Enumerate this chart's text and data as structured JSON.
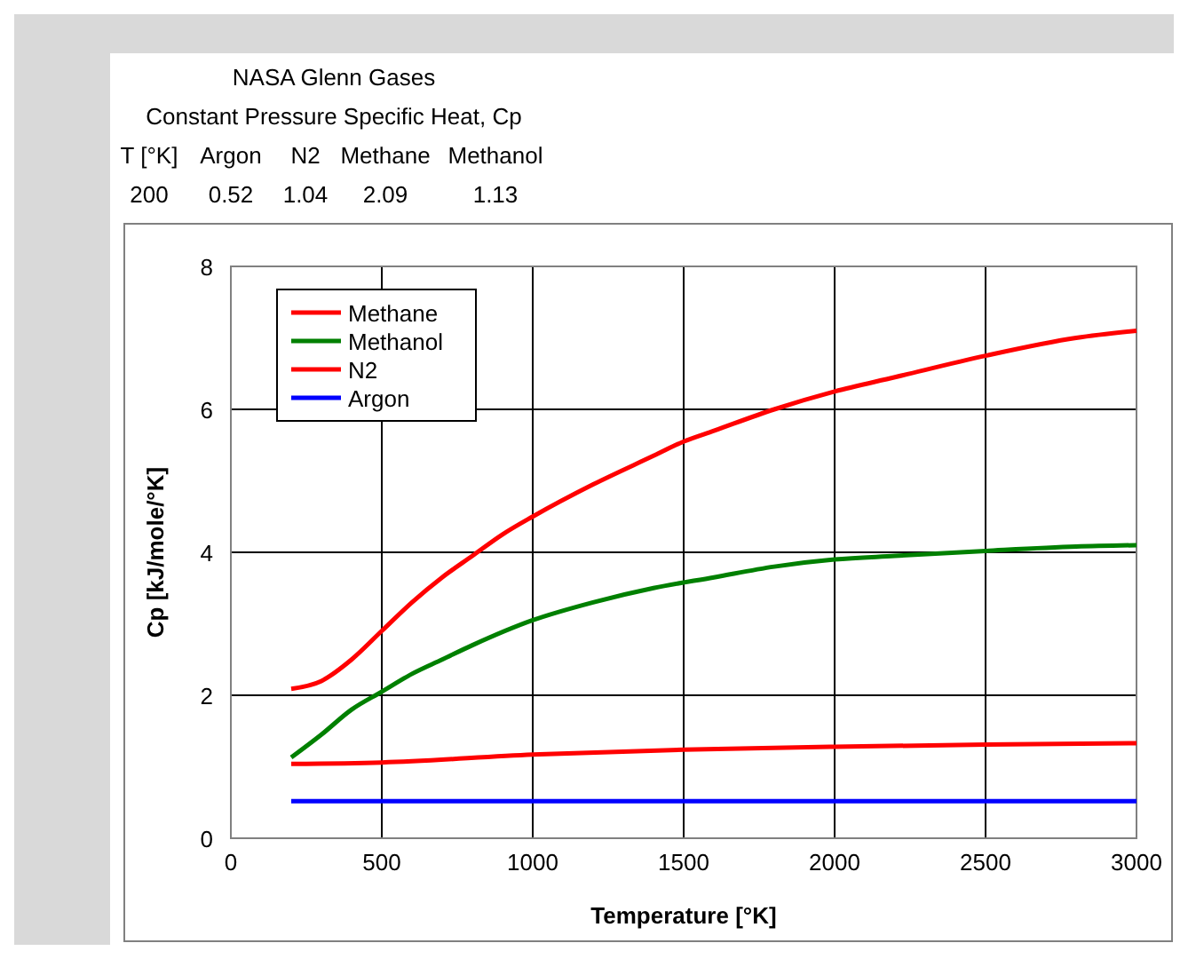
{
  "chart_data": {
    "type": "line",
    "title": "NASA Glenn Gases",
    "subtitle": "Constant Pressure Specific Heat, Cp",
    "annotations": [
      "T [°K]",
      "Argon",
      "N2",
      "Methane",
      "Methanol",
      "200",
      "0.52",
      "1.04",
      "2.09",
      "1.13"
    ],
    "xlabel": "Temperature [°K]",
    "ylabel": "Cp [kJ/mole/°K]",
    "xlim": [
      0,
      3000
    ],
    "xticks": [
      0,
      500,
      1000,
      1500,
      2000,
      2500,
      3000
    ],
    "ylim": [
      0,
      8
    ],
    "yticks": [
      0,
      2,
      4,
      6,
      8
    ],
    "grid": true,
    "legend": "top left",
    "line_style": "solid",
    "series": [
      {
        "name": "Methane",
        "color": "#ff0000",
        "x": [
          200,
          300,
          400,
          500,
          600,
          700,
          800,
          900,
          1000,
          1200,
          1400,
          1500,
          1600,
          1800,
          2000,
          2200,
          2500,
          2800,
          3000
        ],
        "values": [
          2.09,
          2.2,
          2.5,
          2.9,
          3.3,
          3.65,
          3.95,
          4.25,
          4.5,
          4.95,
          5.35,
          5.55,
          5.7,
          6.0,
          6.25,
          6.45,
          6.75,
          7.0,
          7.1
        ]
      },
      {
        "name": "Methanol",
        "color": "#008000",
        "x": [
          200,
          300,
          400,
          500,
          600,
          700,
          800,
          1000,
          1200,
          1400,
          1600,
          1800,
          2000,
          2200,
          2500,
          2800,
          3000
        ],
        "values": [
          1.13,
          1.45,
          1.8,
          2.05,
          2.3,
          2.5,
          2.7,
          3.05,
          3.3,
          3.5,
          3.65,
          3.8,
          3.9,
          3.95,
          4.02,
          4.08,
          4.1
        ]
      },
      {
        "name": "N2",
        "color": "#ff0000",
        "x": [
          200,
          500,
          1000,
          1500,
          2000,
          2500,
          3000
        ],
        "values": [
          1.04,
          1.06,
          1.17,
          1.24,
          1.28,
          1.31,
          1.33
        ]
      },
      {
        "name": "Argon",
        "color": "#0000ff",
        "x": [
          200,
          3000
        ],
        "values": [
          0.52,
          0.52
        ]
      }
    ]
  }
}
